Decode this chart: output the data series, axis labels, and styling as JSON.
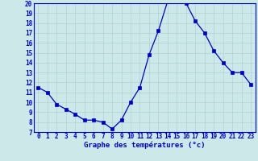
{
  "hours": [
    0,
    1,
    2,
    3,
    4,
    5,
    6,
    7,
    8,
    9,
    10,
    11,
    12,
    13,
    14,
    15,
    16,
    17,
    18,
    19,
    20,
    21,
    22,
    23
  ],
  "temps": [
    11.5,
    11.0,
    9.8,
    9.3,
    8.8,
    8.2,
    8.2,
    8.0,
    7.3,
    8.2,
    10.0,
    11.5,
    14.8,
    17.2,
    20.2,
    20.2,
    20.0,
    18.2,
    17.0,
    15.2,
    14.0,
    13.0,
    13.0,
    11.8
  ],
  "line_color": "#0000cc",
  "marker_color": "#0000cc",
  "bg_color": "#cce8e8",
  "grid_color": "#aacccc",
  "axis_label_color": "#0000cc",
  "tick_label_color": "#0000cc",
  "xlabel": "Graphe des températures (°c)",
  "ylim_min": 7,
  "ylim_max": 20,
  "yticks": [
    7,
    8,
    9,
    10,
    11,
    12,
    13,
    14,
    15,
    16,
    17,
    18,
    19,
    20
  ],
  "xticks": [
    0,
    1,
    2,
    3,
    4,
    5,
    6,
    7,
    8,
    9,
    10,
    11,
    12,
    13,
    14,
    15,
    16,
    17,
    18,
    19,
    20,
    21,
    22,
    23
  ],
  "xlabel_fontsize": 6.5,
  "tick_fontsize": 5.5,
  "linewidth": 0.9,
  "markersize": 2.2
}
